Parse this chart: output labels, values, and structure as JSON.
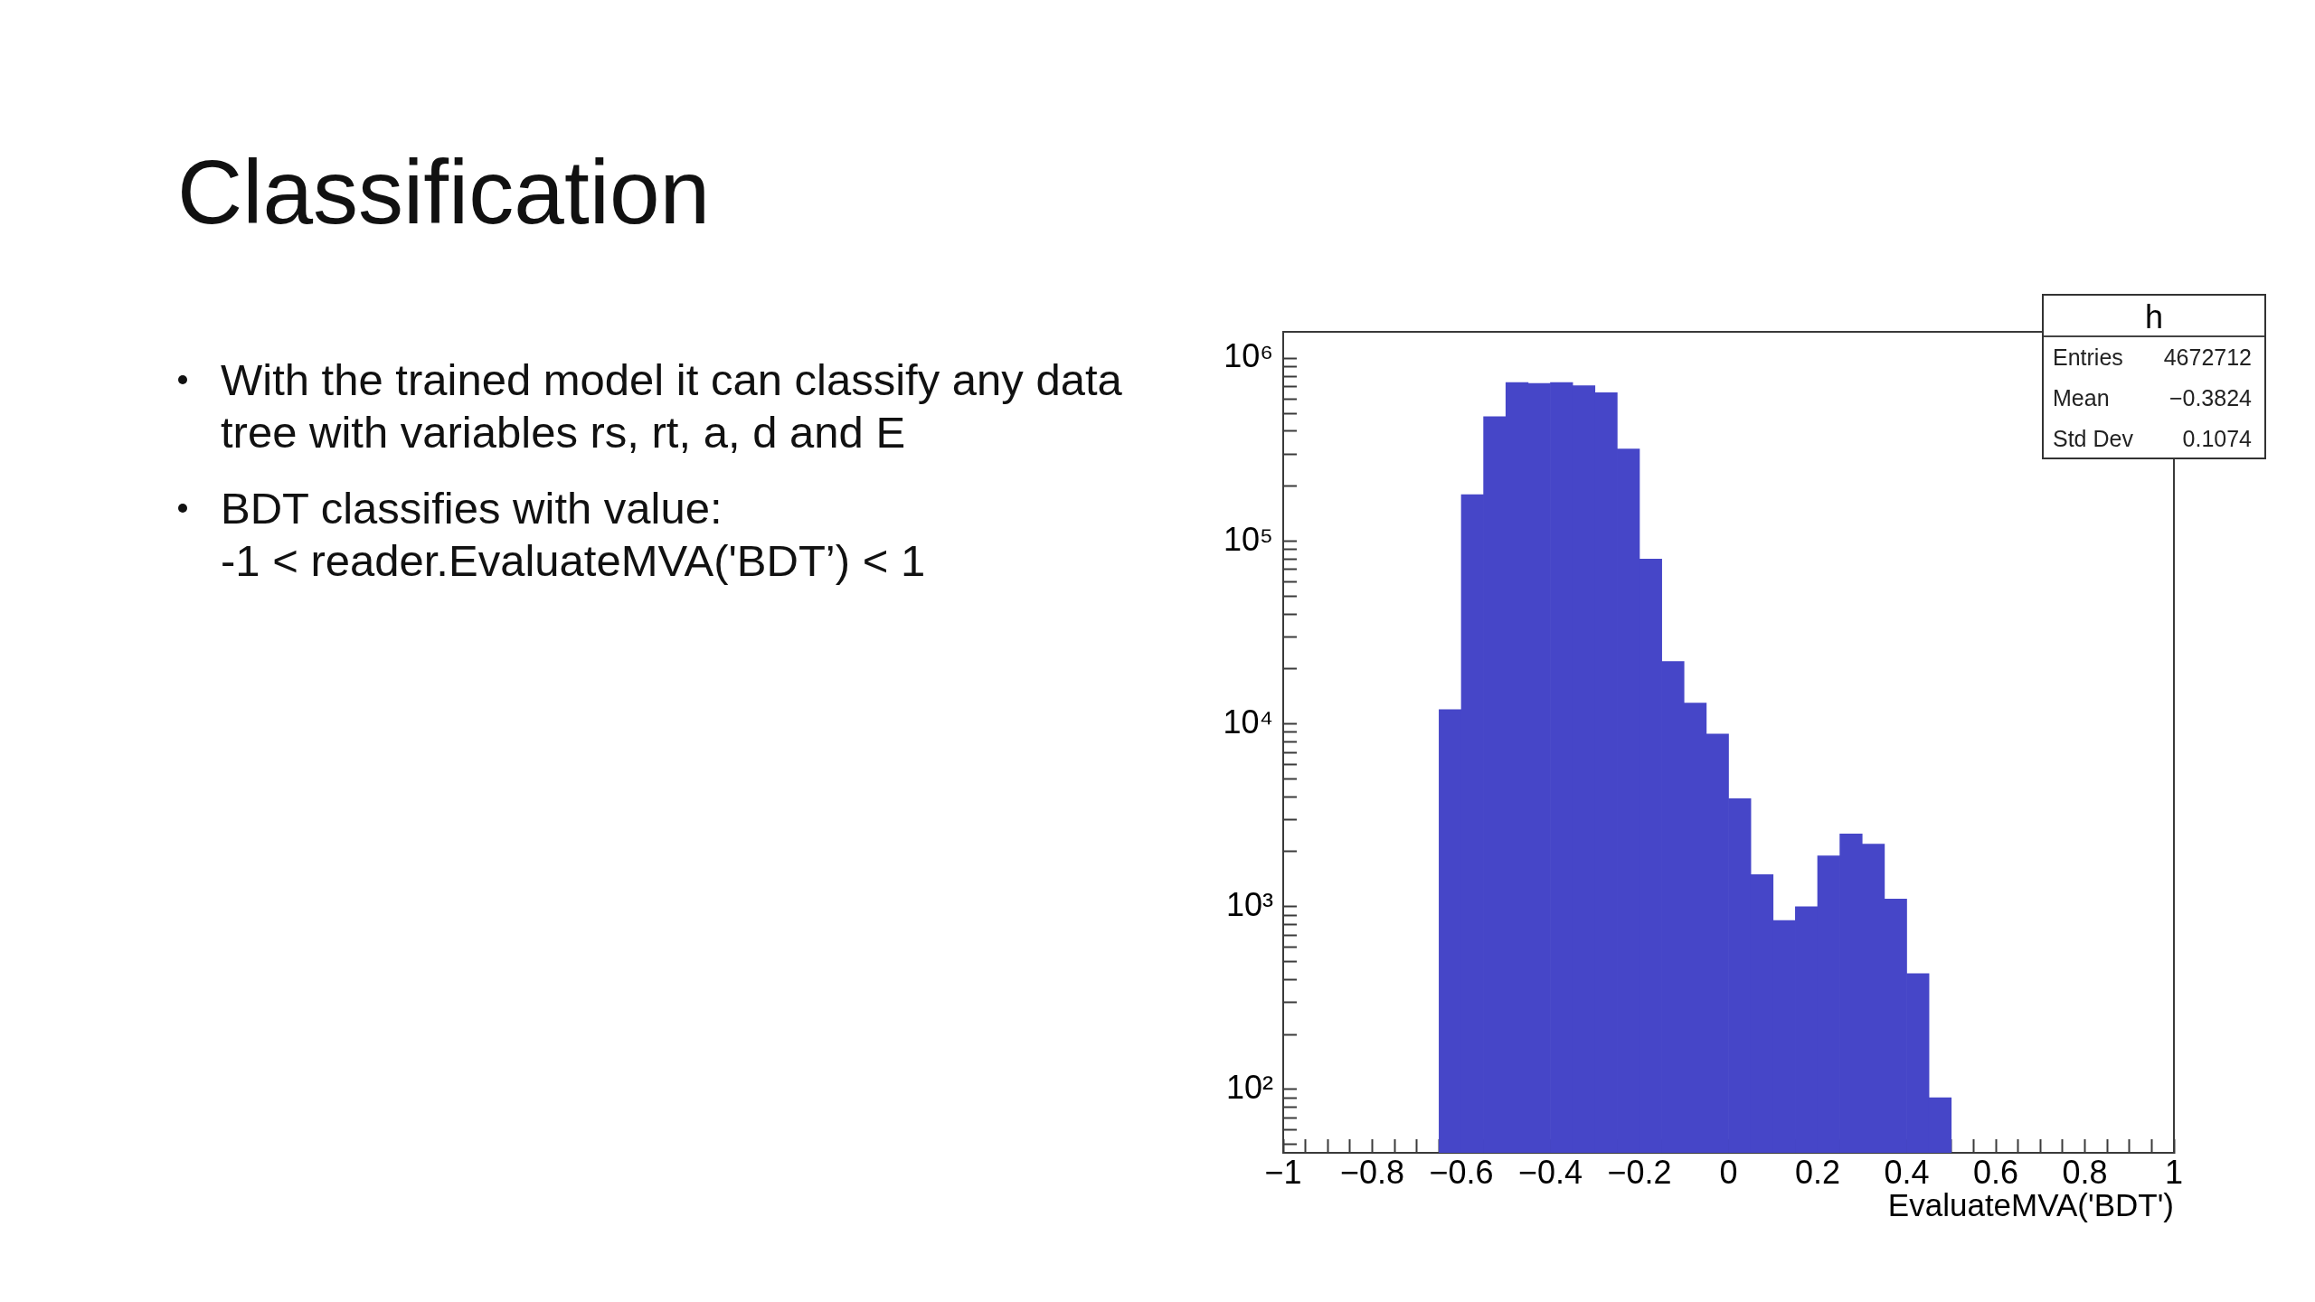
{
  "chart_data": [
    {
      "type": "other",
      "title": "Classification",
      "annotations": [
        "With the trained model it can classify any data tree with variables rs, rt, a, d and E",
        "BDT classifies with value:\n-1 < reader.EvaluateMVA('BDT’) < 1"
      ]
    },
    {
      "type": "histogram",
      "xlabel": "EvaluateMVA('BDT')",
      "color": "#4646c8",
      "log": "y",
      "bins": [
        -0.65,
        -0.6,
        -0.55,
        -0.5,
        -0.45,
        -0.4,
        -0.35,
        -0.3,
        -0.25,
        -0.2,
        -0.15,
        -0.1,
        -0.05,
        0,
        0.05,
        0.1,
        0.15,
        0.2,
        0.25,
        0.3,
        0.35,
        0.4,
        0.45,
        0.5
      ],
      "values": [
        12000,
        180000,
        480000,
        740000,
        730000,
        740000,
        710000,
        650000,
        320000,
        80000,
        22000,
        13000,
        8800,
        3900,
        1500,
        840,
        1000,
        1900,
        2500,
        2200,
        1100,
        430,
        90
      ],
      "xlim": [
        -1,
        1
      ],
      "ylim": [
        45,
        1400000
      ],
      "xticks": [
        {
          "value": -1,
          "label": "−1"
        },
        {
          "value": -0.95,
          "label": null
        },
        {
          "value": -0.9,
          "label": null
        },
        {
          "value": -0.85,
          "label": null
        },
        {
          "value": -0.8,
          "label": "−0.8"
        },
        {
          "value": -0.75,
          "label": null
        },
        {
          "value": -0.7,
          "label": null
        },
        {
          "value": -0.65,
          "label": null
        },
        {
          "value": -0.6,
          "label": "−0.6"
        },
        {
          "value": -0.55,
          "label": null
        },
        {
          "value": -0.5,
          "label": null
        },
        {
          "value": -0.45,
          "label": null
        },
        {
          "value": -0.4,
          "label": "−0.4"
        },
        {
          "value": -0.35,
          "label": null
        },
        {
          "value": -0.3,
          "label": null
        },
        {
          "value": -0.25,
          "label": null
        },
        {
          "value": -0.2,
          "label": "−0.2"
        },
        {
          "value": -0.15,
          "label": null
        },
        {
          "value": -0.1,
          "label": null
        },
        {
          "value": -0.05,
          "label": null
        },
        0,
        {
          "value": 0.05,
          "label": null
        },
        {
          "value": 0.1,
          "label": null
        },
        {
          "value": 0.15,
          "label": null
        },
        0.2,
        {
          "value": 0.25,
          "label": null
        },
        {
          "value": 0.3,
          "label": null
        },
        {
          "value": 0.35,
          "label": null
        },
        0.4,
        {
          "value": 0.45,
          "label": null
        },
        {
          "value": 0.5,
          "label": null
        },
        {
          "value": 0.55,
          "label": null
        },
        0.6,
        {
          "value": 0.65,
          "label": null
        },
        {
          "value": 0.7,
          "label": null
        },
        {
          "value": 0.75,
          "label": null
        },
        0.8,
        {
          "value": 0.85,
          "label": null
        },
        {
          "value": 0.9,
          "label": null
        },
        {
          "value": 0.95,
          "label": null
        },
        1
      ],
      "yticks": [
        {
          "value": 50,
          "label": null
        },
        {
          "value": 60,
          "label": null
        },
        {
          "value": 70,
          "label": null
        },
        {
          "value": 80,
          "label": null
        },
        {
          "value": 90,
          "label": null
        },
        {
          "value": 100,
          "label": "10²"
        },
        {
          "value": 200,
          "label": null
        },
        {
          "value": 300,
          "label": null
        },
        {
          "value": 400,
          "label": null
        },
        {
          "value": 500,
          "label": null
        },
        {
          "value": 600,
          "label": null
        },
        {
          "value": 700,
          "label": null
        },
        {
          "value": 800,
          "label": null
        },
        {
          "value": 900,
          "label": null
        },
        {
          "value": 1000,
          "label": "10³"
        },
        {
          "value": 2000,
          "label": null
        },
        {
          "value": 3000,
          "label": null
        },
        {
          "value": 4000,
          "label": null
        },
        {
          "value": 5000,
          "label": null
        },
        {
          "value": 6000,
          "label": null
        },
        {
          "value": 7000,
          "label": null
        },
        {
          "value": 8000,
          "label": null
        },
        {
          "value": 9000,
          "label": null
        },
        {
          "value": 10000,
          "label": "10⁴"
        },
        {
          "value": 20000,
          "label": null
        },
        {
          "value": 30000,
          "label": null
        },
        {
          "value": 40000,
          "label": null
        },
        {
          "value": 50000,
          "label": null
        },
        {
          "value": 60000,
          "label": null
        },
        {
          "value": 70000,
          "label": null
        },
        {
          "value": 80000,
          "label": null
        },
        {
          "value": 90000,
          "label": null
        },
        {
          "value": 100000,
          "label": "10⁵"
        },
        {
          "value": 200000,
          "label": null
        },
        {
          "value": 300000,
          "label": null
        },
        {
          "value": 400000,
          "label": null
        },
        {
          "value": 500000,
          "label": null
        },
        {
          "value": 600000,
          "label": null
        },
        {
          "value": 700000,
          "label": null
        },
        {
          "value": 800000,
          "label": null
        },
        {
          "value": 900000,
          "label": null
        },
        {
          "value": 1000000,
          "label": "10⁶"
        }
      ],
      "annotations": [
        "h",
        "Entries",
        "4672712",
        "Mean",
        "−0.3824",
        "Std Dev",
        "0.1074"
      ]
    }
  ]
}
